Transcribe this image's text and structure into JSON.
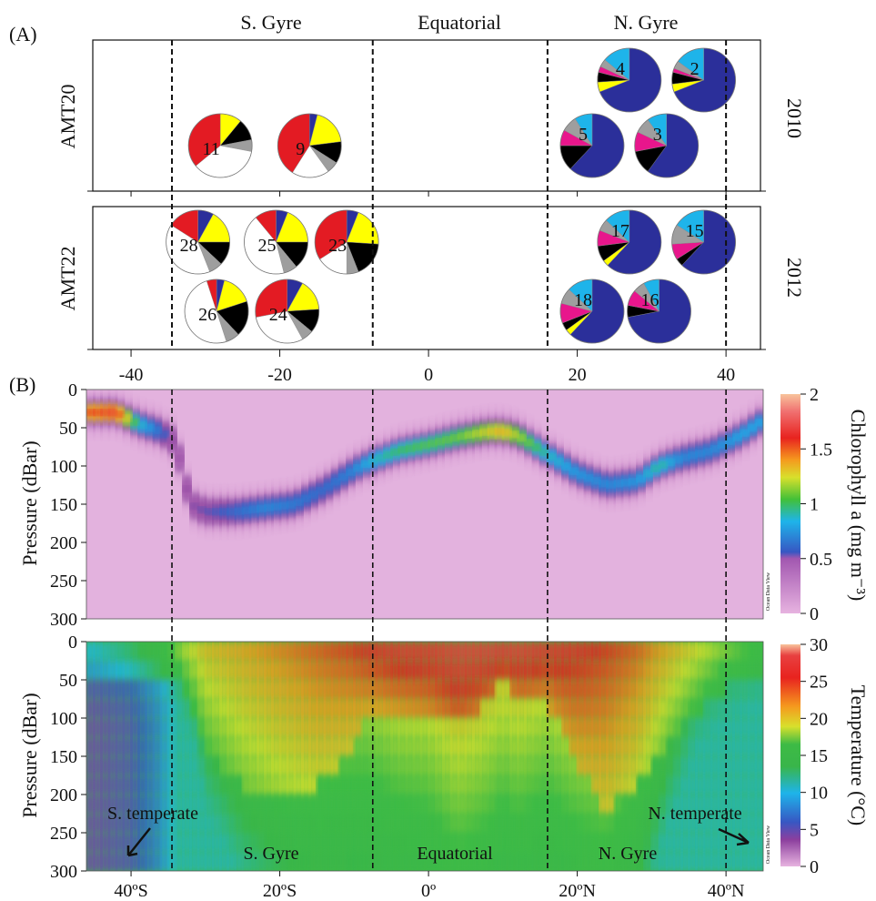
{
  "figure": {
    "panel_a_label": "(A)",
    "panel_b_label": "(B)",
    "regions": [
      "S. Gyre",
      "Equatorial",
      "N. Gyre"
    ],
    "boundaries": [
      -34.5,
      -7.5,
      16,
      40
    ],
    "lat_range": [
      -46,
      45
    ]
  },
  "chart_data": [
    {
      "type": "pie",
      "title": "",
      "row_label": "AMT20",
      "year": "2010",
      "xlim": [
        -46,
        45
      ],
      "xticks": [
        "-40",
        "-20",
        "0",
        "20",
        "40"
      ],
      "xtick_values": [
        -40,
        -20,
        0,
        20,
        40
      ],
      "slice_colors": [
        "#2b2f9a",
        "#ffff00",
        "#000000",
        "#e8168c",
        "#9e9e9e",
        "#1eb4ea",
        "#ffffff",
        "#e31b23"
      ],
      "pies": [
        {
          "station": "4",
          "lat": 27,
          "tier": "upper",
          "fractions": [
            0.69,
            0.05,
            0.05,
            0.03,
            0.04,
            0.14,
            0.0,
            0.0
          ]
        },
        {
          "station": "2",
          "lat": 37,
          "tier": "upper",
          "fractions": [
            0.69,
            0.04,
            0.06,
            0.02,
            0.04,
            0.15,
            0.0,
            0.0
          ]
        },
        {
          "station": "11",
          "lat": -28,
          "tier": "lower",
          "fractions": [
            0.0,
            0.11,
            0.11,
            0.0,
            0.06,
            0.0,
            0.36,
            0.36
          ]
        },
        {
          "station": "9",
          "lat": -16,
          "tier": "lower",
          "fractions": [
            0.04,
            0.19,
            0.11,
            0.0,
            0.06,
            0.0,
            0.19,
            0.41
          ]
        },
        {
          "station": "5",
          "lat": 22,
          "tier": "lower",
          "fractions": [
            0.62,
            0.0,
            0.13,
            0.08,
            0.08,
            0.09,
            0.0,
            0.0
          ]
        },
        {
          "station": "3",
          "lat": 32,
          "tier": "lower",
          "fractions": [
            0.6,
            0.0,
            0.12,
            0.1,
            0.08,
            0.1,
            0.0,
            0.0
          ]
        }
      ]
    },
    {
      "type": "pie",
      "title": "",
      "row_label": "AMT22",
      "year": "2012",
      "pies": [
        {
          "station": "28",
          "lat": -31,
          "tier": "upper",
          "fractions": [
            0.08,
            0.17,
            0.12,
            0.0,
            0.07,
            0.0,
            0.4,
            0.16
          ]
        },
        {
          "station": "25",
          "lat": -20.5,
          "tier": "upper",
          "fractions": [
            0.06,
            0.19,
            0.14,
            0.0,
            0.07,
            0.0,
            0.43,
            0.11
          ]
        },
        {
          "station": "23",
          "lat": -11,
          "tier": "upper",
          "fractions": [
            0.06,
            0.2,
            0.18,
            0.0,
            0.06,
            0.0,
            0.16,
            0.34
          ]
        },
        {
          "station": "17",
          "lat": 27,
          "tier": "upper",
          "fractions": [
            0.62,
            0.03,
            0.08,
            0.08,
            0.06,
            0.13,
            0.0,
            0.0
          ]
        },
        {
          "station": "15",
          "lat": 37,
          "tier": "upper",
          "fractions": [
            0.62,
            0.0,
            0.04,
            0.08,
            0.1,
            0.16,
            0.0,
            0.0
          ]
        },
        {
          "station": "26",
          "lat": -28.5,
          "tier": "lower",
          "fractions": [
            0.04,
            0.16,
            0.18,
            0.0,
            0.07,
            0.0,
            0.5,
            0.05
          ]
        },
        {
          "station": "24",
          "lat": -19,
          "tier": "lower",
          "fractions": [
            0.08,
            0.16,
            0.12,
            0.0,
            0.06,
            0.0,
            0.3,
            0.28
          ]
        },
        {
          "station": "18",
          "lat": 22,
          "tier": "lower",
          "fractions": [
            0.62,
            0.03,
            0.04,
            0.1,
            0.08,
            0.13,
            0.0,
            0.0
          ]
        },
        {
          "station": "16",
          "lat": 31,
          "tier": "lower",
          "fractions": [
            0.72,
            0.0,
            0.06,
            0.08,
            0.06,
            0.08,
            0.0,
            0.0
          ]
        }
      ]
    },
    {
      "type": "heatmap",
      "title": "",
      "ylabel": "Pressure (dBar)",
      "ylim": [
        300,
        0
      ],
      "yticks": [
        "0",
        "50",
        "100",
        "150",
        "200",
        "250",
        "300"
      ],
      "ytick_values": [
        0,
        50,
        100,
        150,
        200,
        250,
        300
      ],
      "colorbar_label": "Chlorophyll a (mg m⁻³)",
      "colorbar_ticks": [
        "0",
        "0.5",
        "1",
        "1.5",
        "2"
      ],
      "colorbar_values": [
        0,
        0.5,
        1,
        1.5,
        2
      ],
      "watermark": "Ocean Data View",
      "dcm_depth": {
        "lat": [
          -45,
          -42,
          -39,
          -36,
          -34,
          -32,
          -30,
          -26,
          -22,
          -18,
          -14,
          -10,
          -8,
          -4,
          0,
          4,
          8,
          10,
          12,
          16,
          20,
          24,
          28,
          31,
          34,
          38,
          42,
          45
        ],
        "depth": [
          30,
          30,
          45,
          55,
          70,
          150,
          160,
          160,
          155,
          150,
          130,
          105,
          95,
          80,
          72,
          62,
          55,
          55,
          60,
          85,
          110,
          125,
          120,
          100,
          90,
          80,
          60,
          40
        ],
        "max_chl": [
          1.6,
          1.7,
          0.9,
          0.6,
          0.4,
          0.45,
          0.5,
          0.6,
          0.7,
          0.65,
          0.6,
          0.7,
          0.85,
          1.0,
          1.05,
          1.1,
          1.3,
          1.4,
          1.2,
          0.9,
          0.75,
          0.7,
          0.75,
          0.95,
          0.7,
          0.7,
          0.8,
          0.8
        ]
      }
    },
    {
      "type": "heatmap",
      "title": "",
      "ylabel": "Pressure (dBar)",
      "ylim": [
        300,
        0
      ],
      "yticks": [
        "0",
        "50",
        "100",
        "150",
        "200",
        "250",
        "300"
      ],
      "ytick_values": [
        0,
        50,
        100,
        150,
        200,
        250,
        300
      ],
      "xticks": [
        "40ºS",
        "20ºS",
        "0º",
        "20ºN",
        "40ºN"
      ],
      "xtick_values": [
        -40,
        -20,
        0,
        20,
        40
      ],
      "colorbar_label": "Temperature (°C)",
      "colorbar_ticks": [
        "0",
        "5",
        "10",
        "15",
        "20",
        "25",
        "30"
      ],
      "colorbar_values": [
        0,
        5,
        10,
        15,
        20,
        25,
        30
      ],
      "watermark": "Ocean Data View",
      "region_labels": [
        "S. temperate",
        "S. Gyre",
        "Equatorial",
        "N. Gyre",
        "N. temperate"
      ],
      "thermocline": {
        "lat": [
          -45,
          -40,
          -36,
          -34,
          -30,
          -25,
          -20,
          -15,
          -10,
          -8,
          -4,
          0,
          4,
          8,
          10,
          12,
          16,
          20,
          24,
          28,
          32,
          36,
          40,
          45
        ],
        "surface_temp": [
          11,
          13,
          15,
          18,
          21,
          22,
          23,
          24,
          25,
          26,
          27,
          27,
          28,
          28,
          28,
          28,
          27,
          26,
          25,
          24,
          22,
          20,
          18,
          16
        ],
        "mixed_depth": [
          60,
          60,
          60,
          40,
          140,
          190,
          200,
          190,
          140,
          100,
          90,
          100,
          110,
          80,
          50,
          70,
          80,
          160,
          220,
          190,
          130,
          100,
          60,
          40
        ],
        "deep_temp": [
          5,
          6,
          9,
          12,
          12,
          12,
          12,
          12,
          12,
          13,
          13,
          13,
          13,
          13,
          13,
          13,
          13,
          13,
          13,
          13,
          12,
          12,
          12,
          12
        ]
      }
    }
  ]
}
